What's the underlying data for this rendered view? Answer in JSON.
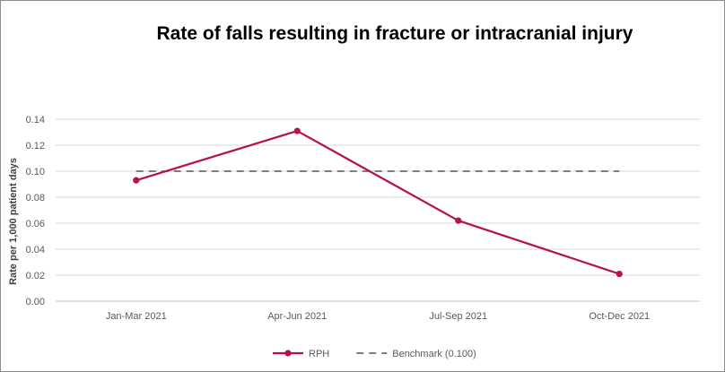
{
  "chart_data": {
    "type": "line",
    "title": "Rate of falls resulting in fracture or intracranial injury",
    "xlabel": "",
    "ylabel": "Rate per 1,000 patient days",
    "categories": [
      "Jan-Mar 2021",
      "Apr-Jun 2021",
      "Jul-Sep 2021",
      "Oct-Dec 2021"
    ],
    "ylim": [
      0,
      0.14
    ],
    "yticks": [
      "0.00",
      "0.02",
      "0.04",
      "0.06",
      "0.08",
      "0.10",
      "0.12",
      "0.14"
    ],
    "grid": true,
    "legend_position": "bottom",
    "series": [
      {
        "name": "RPH",
        "values": [
          0.093,
          0.131,
          0.062,
          0.021
        ],
        "color": "#b5134a",
        "style": "solid",
        "markers": true
      },
      {
        "name": "Benchmark (0.100)",
        "values": [
          0.1,
          0.1,
          0.1,
          0.1
        ],
        "color": "#7f7f7f",
        "style": "dashed",
        "markers": false
      }
    ]
  }
}
